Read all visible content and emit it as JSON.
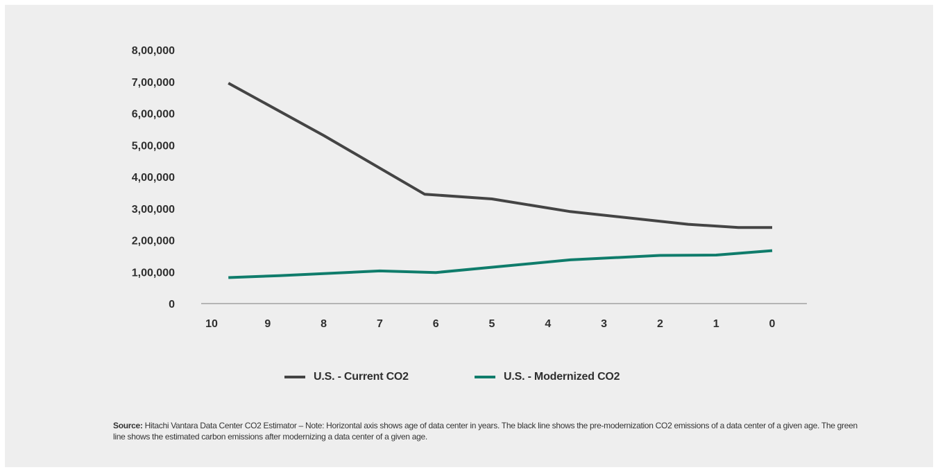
{
  "chart_data": {
    "type": "line",
    "title": "",
    "xlabel": "",
    "ylabel": "",
    "categories": [
      "10",
      "9",
      "8",
      "7",
      "6",
      "5",
      "4",
      "3",
      "2",
      "1",
      "0"
    ],
    "ylim": [
      0,
      800000
    ],
    "y_tick_values": [
      0,
      100000,
      200000,
      300000,
      400000,
      500000,
      600000,
      700000,
      800000
    ],
    "y_tick_labels": [
      "0",
      "1,00,000",
      "2,00,000",
      "3,00,000",
      "4,00,000",
      "5,00,000",
      "6,00,000",
      "7,00,000",
      "8,00,000"
    ],
    "grid": false,
    "legend_position": "bottom",
    "series": [
      {
        "name": "U.S. - Current CO2",
        "color": "#444444",
        "points": [
          {
            "x": 9.7,
            "y": 695000
          },
          {
            "x": 8.0,
            "y": 530000
          },
          {
            "x": 6.2,
            "y": 345000
          },
          {
            "x": 5.0,
            "y": 330000
          },
          {
            "x": 3.6,
            "y": 290000
          },
          {
            "x": 1.5,
            "y": 250000
          },
          {
            "x": 0.6,
            "y": 240000
          },
          {
            "x": 0.0,
            "y": 240000
          }
        ]
      },
      {
        "name": "U.S. - Modernized CO2",
        "color": "#0f7c6b",
        "points": [
          {
            "x": 9.7,
            "y": 82000
          },
          {
            "x": 8.8,
            "y": 88000
          },
          {
            "x": 7.0,
            "y": 103000
          },
          {
            "x": 6.0,
            "y": 98000
          },
          {
            "x": 3.6,
            "y": 138000
          },
          {
            "x": 2.0,
            "y": 152000
          },
          {
            "x": 1.0,
            "y": 153000
          },
          {
            "x": 0.0,
            "y": 167000
          }
        ]
      }
    ]
  },
  "source_label": "Source:",
  "source_text": " Hitachi Vantara Data Center CO2 Estimator – Note: Horizontal axis shows age of data center in years. The black line shows the pre-modernization CO2 emissions of a data center of a given age. The green line shows the estimated carbon emissions after modernizing a data center of a given age."
}
